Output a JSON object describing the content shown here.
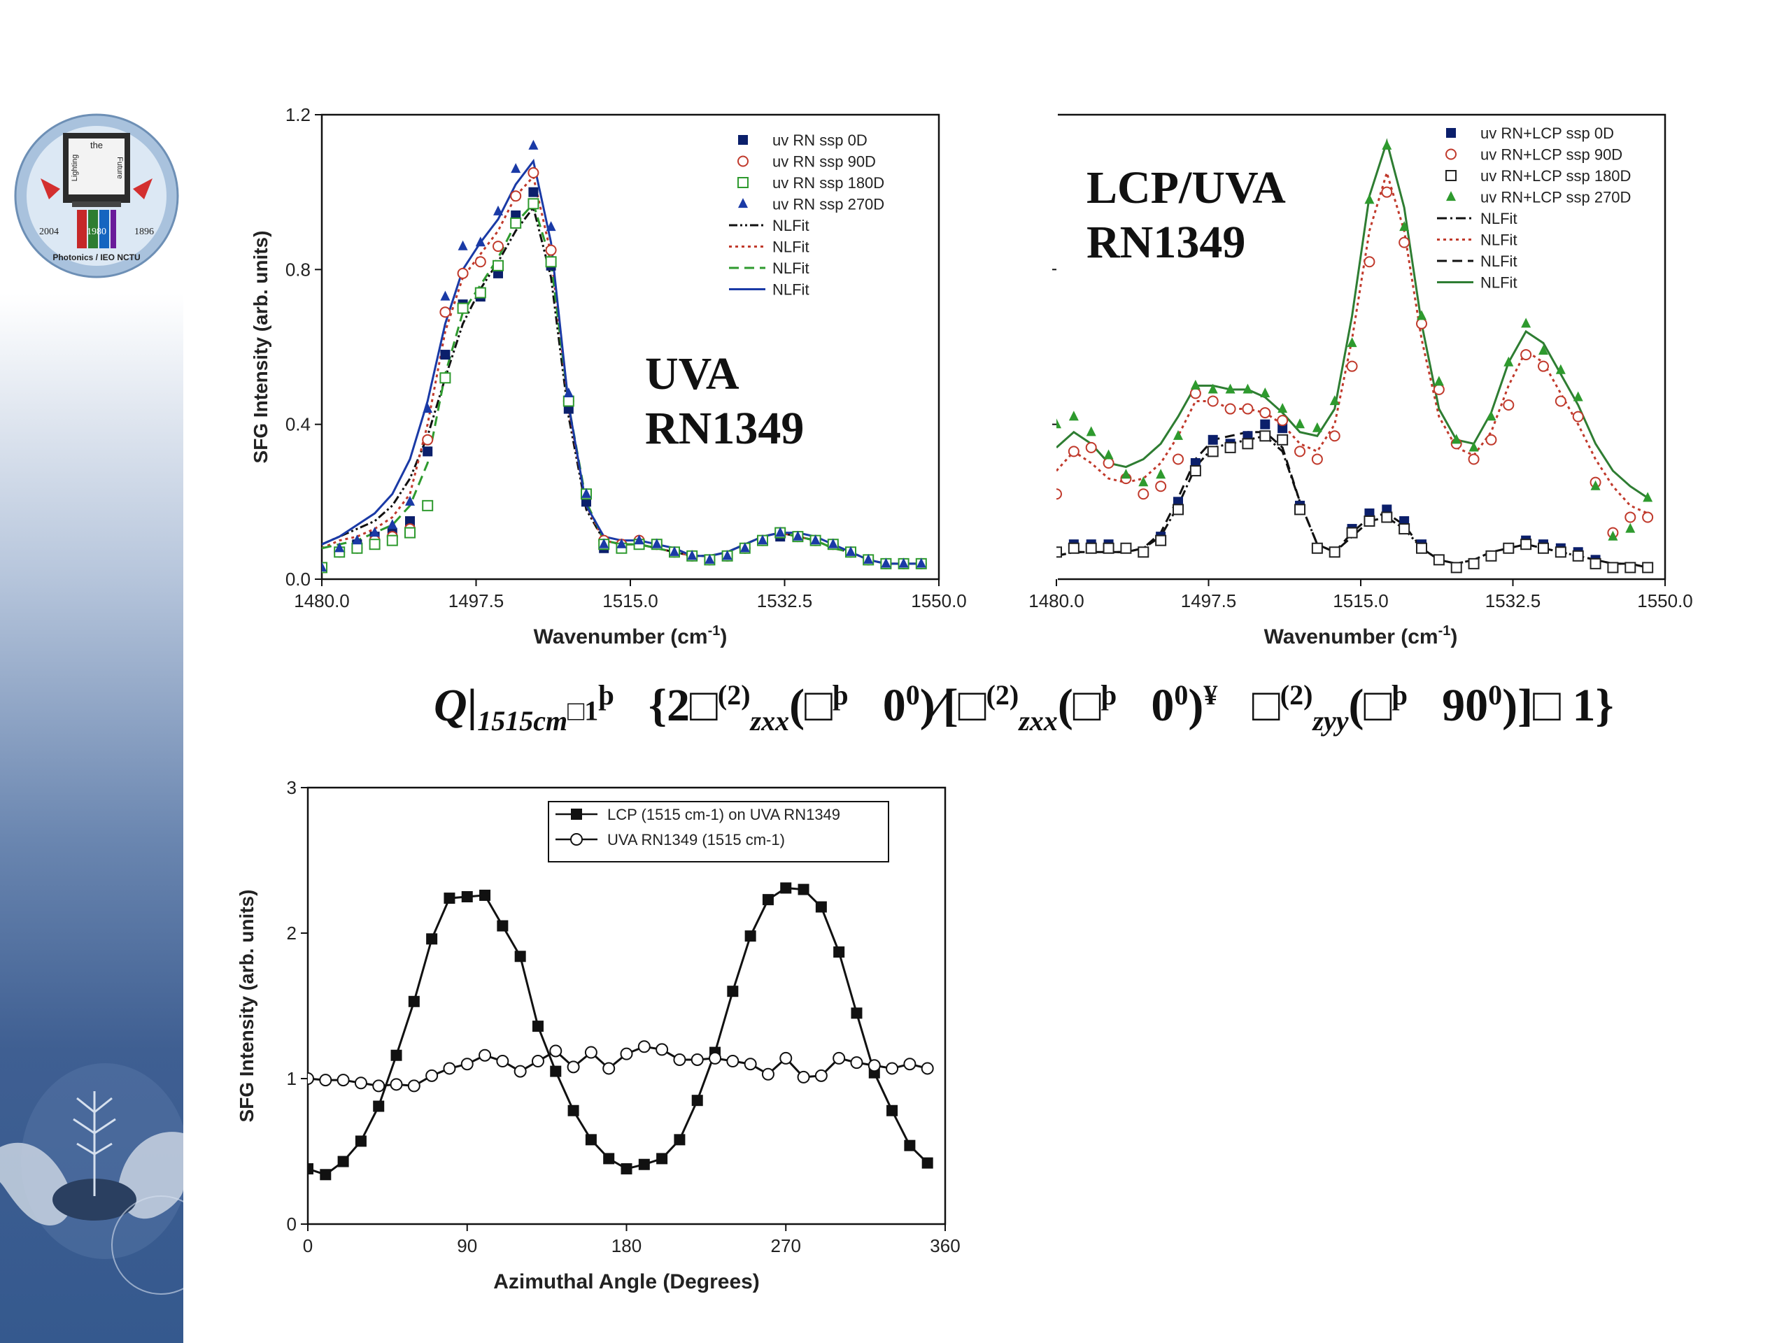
{
  "logo": {
    "text_top": "the",
    "text_left": "Lighting",
    "text_right": "Future",
    "year_left": "2004",
    "year_mid": "1980",
    "year_right": "1896",
    "org": "Photonics / IEO NCTU",
    "icon": "university-logo-icon"
  },
  "decoration": {
    "icon": "hands-holding-seedling-icon"
  },
  "labels": {
    "uva_line1": "UVA",
    "uva_line2": "RN1349",
    "lcp_line1": "LCP/UVA",
    "lcp_line2": "RN1349"
  },
  "equation": {
    "q": "Q",
    "q_sub": "1515cm",
    "q_sub_sup": "□1",
    "q_sup": "þ",
    "part1": "{2",
    "chi1": "□",
    "chi_sup": "(2)",
    "sub_zxx": "zxx",
    "sub_zyy": "zyy",
    "paren_open": "(",
    "phi": "□",
    "phi_sup": "þ",
    "zero": "0",
    "ninety": "90",
    "deg": "0",
    "close1": ")∕[",
    "close2": "",
    "y_mark": "¥",
    "close3": ")]",
    "minus": "□",
    "end": " 1}"
  },
  "chart_data": [
    {
      "type": "line",
      "title": "",
      "xlabel": "Wavenumber (cm-1)",
      "ylabel": "SFG Intensity (arb. units)",
      "xlim": [
        1480,
        1550
      ],
      "ylim": [
        0,
        1.2
      ],
      "xticks": [
        "1480.0",
        "1497.5",
        "1515.0",
        "1532.5",
        "1550.0"
      ],
      "yticks": [
        "0.0",
        "0.4",
        "0.8",
        "1.2"
      ],
      "legend_position": "top-right",
      "x": [
        1480,
        1482,
        1484,
        1486,
        1488,
        1490,
        1492,
        1494,
        1496,
        1498,
        1500,
        1502,
        1504,
        1506,
        1508,
        1510,
        1512,
        1514,
        1516,
        1518,
        1520,
        1522,
        1524,
        1526,
        1528,
        1530,
        1532,
        1534,
        1536,
        1538,
        1540,
        1542,
        1544,
        1546,
        1548
      ],
      "series": [
        {
          "name": "uv RN ssp 0D",
          "marker": "filled-square",
          "color": "#0b1f6b",
          "values": [
            0.03,
            0.07,
            0.09,
            0.11,
            0.12,
            0.15,
            0.33,
            0.58,
            0.71,
            0.73,
            0.79,
            0.94,
            1.0,
            0.81,
            0.44,
            0.2,
            0.08,
            0.08,
            0.09,
            0.09,
            0.07,
            0.06,
            0.05,
            0.06,
            0.08,
            0.1,
            0.11,
            0.11,
            0.1,
            0.09,
            0.07,
            0.05,
            0.04,
            0.04,
            0.04
          ]
        },
        {
          "name": "uv RN ssp 90D",
          "marker": "open-circle",
          "color": "#c0392b",
          "values": [
            0.03,
            0.07,
            0.08,
            0.1,
            0.11,
            0.13,
            0.36,
            0.69,
            0.79,
            0.82,
            0.86,
            0.99,
            1.05,
            0.85,
            0.46,
            0.22,
            0.1,
            0.09,
            0.1,
            0.09,
            0.07,
            0.06,
            0.05,
            0.06,
            0.08,
            0.1,
            0.12,
            0.11,
            0.1,
            0.09,
            0.07,
            0.05,
            0.04,
            0.04,
            0.04
          ]
        },
        {
          "name": "uv RN ssp 180D",
          "marker": "open-square",
          "color": "#2e9a2e",
          "values": [
            0.03,
            0.07,
            0.08,
            0.09,
            0.1,
            0.12,
            0.19,
            0.52,
            0.7,
            0.74,
            0.81,
            0.92,
            0.97,
            0.82,
            0.46,
            0.22,
            0.09,
            0.08,
            0.09,
            0.09,
            0.07,
            0.06,
            0.05,
            0.06,
            0.08,
            0.1,
            0.12,
            0.11,
            0.1,
            0.09,
            0.07,
            0.05,
            0.04,
            0.04,
            0.04
          ]
        },
        {
          "name": "uv RN ssp 270D",
          "marker": "filled-triangle",
          "color": "#1a3aa6",
          "values": [
            0.03,
            0.08,
            0.1,
            0.12,
            0.14,
            0.2,
            0.44,
            0.73,
            0.86,
            0.87,
            0.95,
            1.06,
            1.12,
            0.91,
            0.48,
            0.22,
            0.09,
            0.09,
            0.1,
            0.09,
            0.07,
            0.06,
            0.05,
            0.06,
            0.08,
            0.1,
            0.12,
            0.11,
            0.1,
            0.09,
            0.07,
            0.05,
            0.04,
            0.04,
            0.04
          ]
        }
      ],
      "fits": [
        {
          "name": "NLFit",
          "style": "dash-dot-dot",
          "color": "#111111",
          "values": [
            0.09,
            0.11,
            0.13,
            0.15,
            0.19,
            0.26,
            0.37,
            0.52,
            0.66,
            0.75,
            0.82,
            0.9,
            0.96,
            0.78,
            0.42,
            0.18,
            0.1,
            0.09,
            0.09,
            0.08,
            0.07,
            0.06,
            0.06,
            0.07,
            0.09,
            0.11,
            0.12,
            0.11,
            0.1,
            0.08,
            0.07,
            0.05,
            0.04,
            0.04,
            0.04
          ]
        },
        {
          "name": "NLFit",
          "style": "dotted",
          "color": "#c0392b",
          "values": [
            0.08,
            0.1,
            0.11,
            0.13,
            0.16,
            0.22,
            0.4,
            0.64,
            0.78,
            0.84,
            0.9,
            0.99,
            1.04,
            0.84,
            0.44,
            0.19,
            0.1,
            0.09,
            0.09,
            0.08,
            0.07,
            0.06,
            0.06,
            0.07,
            0.09,
            0.11,
            0.12,
            0.11,
            0.1,
            0.08,
            0.07,
            0.05,
            0.04,
            0.04,
            0.04
          ]
        },
        {
          "name": "NLFit",
          "style": "dashed",
          "color": "#2e9a2e",
          "values": [
            0.08,
            0.09,
            0.1,
            0.12,
            0.14,
            0.19,
            0.3,
            0.53,
            0.69,
            0.76,
            0.83,
            0.92,
            0.97,
            0.82,
            0.45,
            0.2,
            0.1,
            0.09,
            0.09,
            0.08,
            0.07,
            0.06,
            0.06,
            0.07,
            0.09,
            0.11,
            0.12,
            0.11,
            0.1,
            0.08,
            0.07,
            0.05,
            0.04,
            0.04,
            0.04
          ]
        },
        {
          "name": "NLFit",
          "style": "solid",
          "color": "#1a3aa6",
          "values": [
            0.09,
            0.11,
            0.14,
            0.17,
            0.22,
            0.31,
            0.46,
            0.66,
            0.8,
            0.87,
            0.93,
            1.02,
            1.08,
            0.87,
            0.45,
            0.19,
            0.11,
            0.1,
            0.1,
            0.09,
            0.08,
            0.06,
            0.06,
            0.07,
            0.09,
            0.11,
            0.12,
            0.12,
            0.11,
            0.09,
            0.07,
            0.05,
            0.04,
            0.04,
            0.04
          ]
        }
      ]
    },
    {
      "type": "line",
      "title": "",
      "xlabel": "Wavenumber (cm-1)",
      "ylabel": "",
      "xlim": [
        1480,
        1550
      ],
      "ylim": [
        0,
        1.2
      ],
      "xticks": [
        "1480.0",
        "1497.5",
        "1515.0",
        "1532.5",
        "1550.0"
      ],
      "legend_position": "top-right",
      "x": [
        1480,
        1482,
        1484,
        1486,
        1488,
        1490,
        1492,
        1494,
        1496,
        1498,
        1500,
        1502,
        1504,
        1506,
        1508,
        1510,
        1512,
        1514,
        1516,
        1518,
        1520,
        1522,
        1524,
        1526,
        1528,
        1530,
        1532,
        1534,
        1536,
        1538,
        1540,
        1542,
        1544,
        1546,
        1548
      ],
      "series": [
        {
          "name": "uv RN+LCP  ssp 0D",
          "marker": "filled-square",
          "color": "#0b1f6b",
          "values": [
            0.07,
            0.09,
            0.09,
            0.09,
            0.08,
            0.07,
            0.11,
            0.2,
            0.3,
            0.36,
            0.35,
            0.37,
            0.4,
            0.39,
            0.19,
            0.08,
            0.07,
            0.13,
            0.17,
            0.18,
            0.15,
            0.09,
            0.05,
            0.03,
            0.04,
            0.06,
            0.08,
            0.1,
            0.09,
            0.08,
            0.07,
            0.05,
            0.03,
            0.03,
            0.03
          ]
        },
        {
          "name": "uv RN+LCP ssp 90D",
          "marker": "open-circle",
          "color": "#c0392b",
          "values": [
            0.22,
            0.33,
            0.34,
            0.3,
            0.26,
            0.22,
            0.24,
            0.31,
            0.48,
            0.46,
            0.44,
            0.44,
            0.43,
            0.41,
            0.33,
            0.31,
            0.37,
            0.55,
            0.82,
            1.0,
            0.87,
            0.66,
            0.49,
            0.35,
            0.31,
            0.36,
            0.45,
            0.58,
            0.55,
            0.46,
            0.42,
            0.25,
            0.12,
            0.16,
            0.16
          ]
        },
        {
          "name": "uv RN+LCP ssp 180D",
          "marker": "open-square",
          "color": "#222222",
          "values": [
            0.07,
            0.08,
            0.08,
            0.08,
            0.08,
            0.07,
            0.1,
            0.18,
            0.28,
            0.33,
            0.34,
            0.35,
            0.37,
            0.36,
            0.18,
            0.08,
            0.07,
            0.12,
            0.15,
            0.16,
            0.13,
            0.08,
            0.05,
            0.03,
            0.04,
            0.06,
            0.08,
            0.09,
            0.08,
            0.07,
            0.06,
            0.04,
            0.03,
            0.03,
            0.03
          ]
        },
        {
          "name": "uv RN+LCP ssp 270D",
          "marker": "filled-triangle",
          "color": "#2e9a2e",
          "values": [
            0.4,
            0.42,
            0.38,
            0.32,
            0.27,
            0.25,
            0.27,
            0.37,
            0.5,
            0.49,
            0.49,
            0.49,
            0.48,
            0.44,
            0.4,
            0.39,
            0.46,
            0.61,
            0.98,
            1.12,
            0.91,
            0.68,
            0.51,
            0.36,
            0.34,
            0.42,
            0.56,
            0.66,
            0.59,
            0.54,
            0.47,
            0.24,
            0.11,
            0.13,
            0.21
          ]
        }
      ],
      "fits": [
        {
          "name": "NLFit",
          "style": "dash-dot",
          "color": "#111111",
          "values": [
            0.06,
            0.07,
            0.07,
            0.07,
            0.07,
            0.08,
            0.11,
            0.19,
            0.29,
            0.34,
            0.35,
            0.36,
            0.37,
            0.33,
            0.2,
            0.09,
            0.07,
            0.11,
            0.15,
            0.16,
            0.13,
            0.08,
            0.05,
            0.04,
            0.05,
            0.07,
            0.08,
            0.09,
            0.08,
            0.07,
            0.06,
            0.05,
            0.04,
            0.04,
            0.03
          ]
        },
        {
          "name": "NLFit",
          "style": "dotted",
          "color": "#c0392b",
          "values": [
            0.28,
            0.33,
            0.3,
            0.26,
            0.25,
            0.26,
            0.3,
            0.37,
            0.46,
            0.46,
            0.44,
            0.44,
            0.43,
            0.4,
            0.35,
            0.33,
            0.4,
            0.62,
            0.9,
            1.05,
            0.9,
            0.62,
            0.42,
            0.34,
            0.32,
            0.38,
            0.5,
            0.59,
            0.56,
            0.48,
            0.4,
            0.31,
            0.24,
            0.19,
            0.17
          ]
        },
        {
          "name": "NLFit",
          "style": "dashed",
          "color": "#111111",
          "values": [
            0.06,
            0.07,
            0.07,
            0.07,
            0.07,
            0.08,
            0.12,
            0.21,
            0.31,
            0.36,
            0.37,
            0.38,
            0.38,
            0.34,
            0.2,
            0.09,
            0.07,
            0.12,
            0.16,
            0.17,
            0.14,
            0.08,
            0.05,
            0.04,
            0.05,
            0.07,
            0.08,
            0.09,
            0.08,
            0.07,
            0.06,
            0.05,
            0.04,
            0.04,
            0.03
          ]
        },
        {
          "name": "NLFit",
          "style": "solid",
          "color": "#2e7d32",
          "values": [
            0.34,
            0.38,
            0.35,
            0.3,
            0.29,
            0.31,
            0.35,
            0.42,
            0.5,
            0.5,
            0.49,
            0.49,
            0.47,
            0.43,
            0.38,
            0.37,
            0.44,
            0.68,
            0.99,
            1.13,
            0.96,
            0.66,
            0.44,
            0.36,
            0.35,
            0.43,
            0.56,
            0.64,
            0.61,
            0.53,
            0.45,
            0.35,
            0.28,
            0.24,
            0.21
          ]
        }
      ]
    },
    {
      "type": "line",
      "title": "",
      "xlabel": "Azimuthal Angle (Degrees)",
      "ylabel": "SFG Intensity (arb. units)",
      "xlim": [
        0,
        360
      ],
      "ylim": [
        0,
        3
      ],
      "xticks": [
        "0",
        "90",
        "180",
        "270",
        "360"
      ],
      "yticks": [
        "0",
        "1",
        "2",
        "3"
      ],
      "legend_position": "top-right",
      "x": [
        0,
        10,
        20,
        30,
        40,
        50,
        60,
        70,
        80,
        90,
        100,
        110,
        120,
        130,
        140,
        150,
        160,
        170,
        180,
        190,
        200,
        210,
        220,
        230,
        240,
        250,
        260,
        270,
        280,
        290,
        300,
        310,
        320,
        330,
        340,
        350
      ],
      "series": [
        {
          "name": "LCP (1515 cm-1) on UVA RN1349",
          "marker": "filled-square",
          "color": "#111111",
          "values": [
            0.38,
            0.34,
            0.43,
            0.57,
            0.81,
            1.16,
            1.53,
            1.96,
            2.24,
            2.25,
            2.26,
            2.05,
            1.84,
            1.36,
            1.05,
            0.78,
            0.58,
            0.45,
            0.38,
            0.41,
            0.45,
            0.58,
            0.85,
            1.18,
            1.6,
            1.98,
            2.23,
            2.31,
            2.3,
            2.18,
            1.87,
            1.45,
            1.04,
            0.78,
            0.54,
            0.42
          ]
        },
        {
          "name": "UVA RN1349 (1515 cm-1)",
          "marker": "open-circle",
          "color": "#111111",
          "values": [
            1.0,
            0.99,
            0.99,
            0.97,
            0.95,
            0.96,
            0.95,
            1.02,
            1.07,
            1.1,
            1.16,
            1.12,
            1.05,
            1.12,
            1.19,
            1.08,
            1.18,
            1.07,
            1.17,
            1.22,
            1.2,
            1.13,
            1.13,
            1.14,
            1.12,
            1.1,
            1.03,
            1.14,
            1.01,
            1.02,
            1.14,
            1.11,
            1.09,
            1.07,
            1.1,
            1.07
          ]
        }
      ]
    }
  ]
}
